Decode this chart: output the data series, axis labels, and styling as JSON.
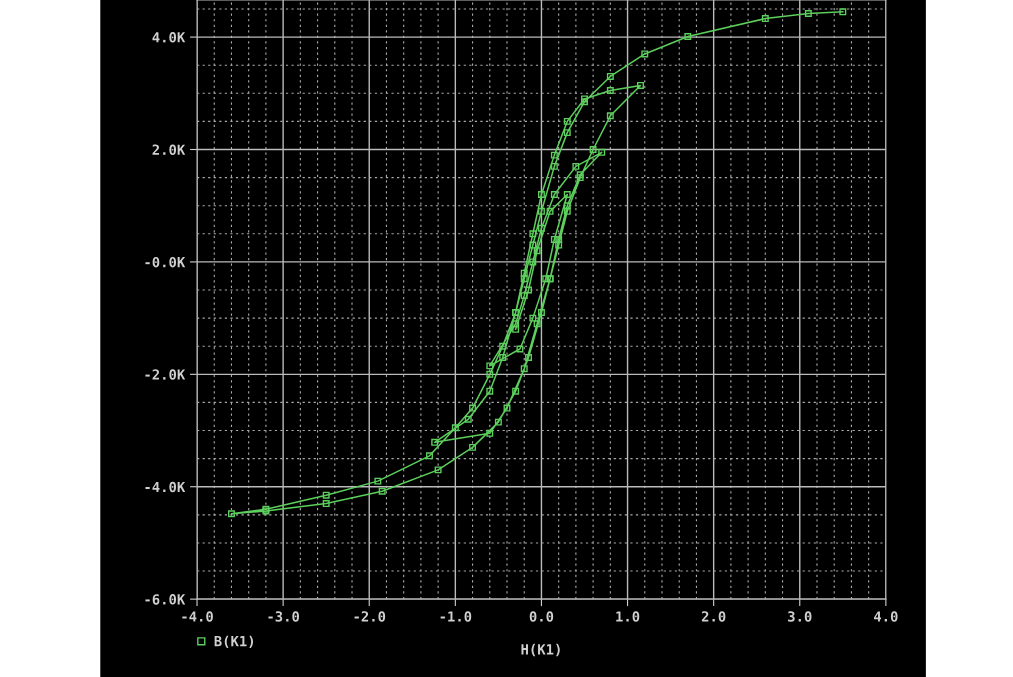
{
  "chart_data": {
    "type": "line",
    "xlabel": "H(K1)",
    "series": [
      {
        "name": "B(K1)",
        "color": "#5ccf5c",
        "x": [
          3.5,
          3.1,
          2.6,
          1.7,
          1.2,
          0.8,
          0.5,
          0.3,
          0.15,
          0.0,
          -0.1,
          -0.2,
          -0.3,
          -0.45,
          -0.6,
          -0.8,
          -1.0,
          -1.3,
          -1.9,
          -2.5,
          -3.2,
          -3.6,
          -3.2,
          -2.5,
          -1.85,
          -1.2,
          -0.8,
          -0.5,
          -0.3,
          -0.15,
          0.0,
          0.1,
          0.2,
          0.3,
          0.45,
          0.6,
          0.8,
          1.15,
          0.8,
          0.5,
          0.3,
          0.15,
          0.0,
          -0.1,
          -0.2,
          -0.3,
          -0.45,
          -0.6,
          -0.85,
          -1.24,
          -0.6,
          -0.4,
          -0.2,
          -0.05,
          0.1,
          0.2,
          0.3,
          0.45,
          0.7,
          0.4,
          0.15,
          0.0,
          -0.1,
          -0.2,
          -0.3,
          -0.6,
          -0.25,
          -0.1,
          0.05,
          0.15,
          0.3,
          0.1,
          -0.05,
          -0.15,
          -0.3
        ],
        "values": [
          4450,
          4420,
          4330,
          4010,
          3700,
          3300,
          2850,
          2300,
          1700,
          900,
          300,
          -300,
          -900,
          -1500,
          -2000,
          -2600,
          -2950,
          -3450,
          -3900,
          -4150,
          -4400,
          -4480,
          -4430,
          -4300,
          -4080,
          -3700,
          -3300,
          -2850,
          -2300,
          -1700,
          -900,
          -300,
          300,
          900,
          1500,
          2000,
          2600,
          3140,
          3050,
          2900,
          2500,
          1900,
          1200,
          500,
          -200,
          -900,
          -1700,
          -2300,
          -2800,
          -3210,
          -3050,
          -2600,
          -1900,
          -1100,
          -300,
          400,
          1000,
          1550,
          1950,
          1700,
          1200,
          600,
          0,
          -600,
          -1100,
          -1850,
          -1550,
          -1000,
          -300,
          400,
          1200,
          900,
          200,
          -500,
          -1200
        ]
      }
    ],
    "xlim": [
      -4,
      4
    ],
    "ylim": [
      -6000,
      4660
    ],
    "xticks": [
      {
        "value": -4,
        "label": "-4.0"
      },
      {
        "value": -3,
        "label": "-3.0"
      },
      {
        "value": -2,
        "label": "-2.0"
      },
      {
        "value": -1,
        "label": "-1.0"
      },
      {
        "value": 0,
        "label": "0.0"
      },
      {
        "value": 1,
        "label": "1.0"
      },
      {
        "value": 2,
        "label": "2.0"
      },
      {
        "value": 3,
        "label": "3.0"
      },
      {
        "value": 4,
        "label": "4.0"
      }
    ],
    "yticks": [
      {
        "value": -6000,
        "label": "-6.0K"
      },
      {
        "value": -4000,
        "label": "-4.0K"
      },
      {
        "value": -2000,
        "label": "-2.0K"
      },
      {
        "value": 0,
        "label": "-0.0K"
      },
      {
        "value": 2000,
        "label": "2.0K"
      },
      {
        "value": 4000,
        "label": "4.0K"
      }
    ],
    "grid": true,
    "legend": "bottom left",
    "marker": "square",
    "line_style": "solid"
  }
}
